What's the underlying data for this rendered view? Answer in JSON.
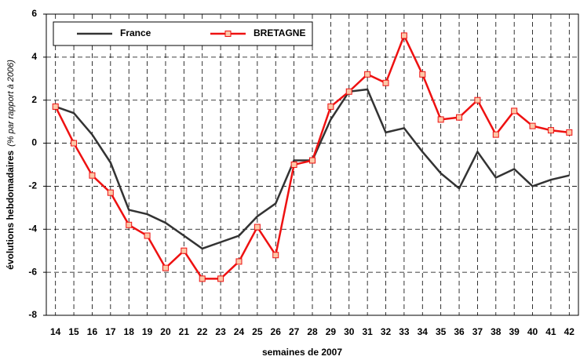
{
  "chart_data": {
    "type": "line",
    "xlabel": "semaines de 2007",
    "ylabel": "évolutions hebdomadaires",
    "ylabel_note": "(% par rapport à 2006)",
    "categories": [
      "14",
      "15",
      "16",
      "17",
      "18",
      "19",
      "20",
      "21",
      "22",
      "23",
      "24",
      "25",
      "26",
      "27",
      "28",
      "29",
      "30",
      "31",
      "32",
      "33",
      "34",
      "35",
      "36",
      "37",
      "38",
      "39",
      "40",
      "41",
      "42"
    ],
    "series": [
      {
        "name": "France",
        "color": "#333333",
        "marker": false,
        "values": [
          1.7,
          1.4,
          0.4,
          -0.9,
          -3.1,
          -3.3,
          -3.7,
          -4.3,
          -4.9,
          -4.6,
          -4.3,
          -3.4,
          -2.8,
          -0.8,
          -0.8,
          1.1,
          2.4,
          2.5,
          0.5,
          0.7,
          -0.4,
          -1.4,
          -2.1,
          -0.4,
          -1.6,
          -1.2,
          -2.0,
          -1.7,
          -1.5
        ]
      },
      {
        "name": "BRETAGNE",
        "color": "#ee1111",
        "marker": true,
        "values": [
          1.7,
          0,
          -1.5,
          -2.3,
          -3.8,
          -4.3,
          -5.8,
          -5.0,
          -6.3,
          -6.3,
          -5.5,
          -3.9,
          -5.2,
          -1.0,
          -0.8,
          1.7,
          2.4,
          3.2,
          2.8,
          5.0,
          3.2,
          1.1,
          1.2,
          2.0,
          0.4,
          1.5,
          0.8,
          0.6,
          0.5
        ]
      }
    ],
    "ylim": [
      -8,
      6
    ],
    "yticks": [
      -8,
      -6,
      -4,
      -2,
      0,
      2,
      4,
      6
    ],
    "grid": true,
    "legend": "upper left"
  }
}
